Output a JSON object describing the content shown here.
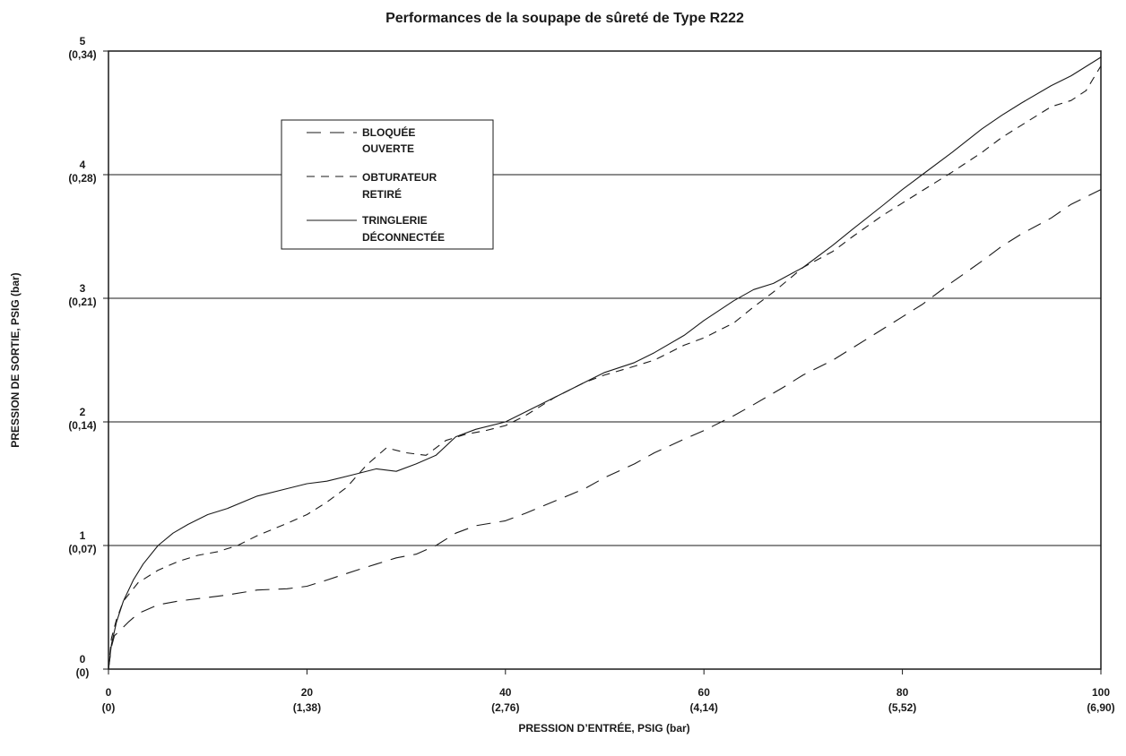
{
  "chart_data": {
    "type": "line",
    "title": "Performances de la soupape de sûreté de Type R222",
    "xlabel": "PRESSION D’ENTRÉE, PSIG (bar)",
    "ylabel": "PRESSION DE SORTIE, PSIG (bar)",
    "xlim": [
      0,
      100
    ],
    "ylim": [
      0,
      5
    ],
    "x_ticks": [
      {
        "value": 0,
        "label": "0",
        "sub": "(0)"
      },
      {
        "value": 20,
        "label": "20",
        "sub": "(1,38)"
      },
      {
        "value": 40,
        "label": "40",
        "sub": "(2,76)"
      },
      {
        "value": 60,
        "label": "60",
        "sub": "(4,14)"
      },
      {
        "value": 80,
        "label": "80",
        "sub": "(5,52)"
      },
      {
        "value": 100,
        "label": "100",
        "sub": "(6,90)"
      }
    ],
    "y_ticks": [
      {
        "value": 0,
        "label": "0",
        "sub": "(0)"
      },
      {
        "value": 1,
        "label": "1",
        "sub": "(0,07)"
      },
      {
        "value": 2,
        "label": "2",
        "sub": "(0,14)"
      },
      {
        "value": 3,
        "label": "3",
        "sub": "(0,21)"
      },
      {
        "value": 4,
        "label": "4",
        "sub": "(0,28)"
      },
      {
        "value": 5,
        "label": "5",
        "sub": "(0,34)"
      }
    ],
    "grid": "horizontal",
    "legend_position": "top-left",
    "series": [
      {
        "name": "BLOQUÉE OUVERTE",
        "legend_lines": [
          "BLOQUÉE",
          "OUVERTE"
        ],
        "dash": "long-dash",
        "x": [
          0,
          0.3,
          0.6,
          1,
          2,
          3,
          5,
          7,
          10,
          12,
          15,
          18,
          20,
          22,
          25,
          27,
          29,
          31,
          33,
          35,
          37,
          40,
          42,
          45,
          48,
          50,
          53,
          55,
          58,
          60,
          63,
          65,
          68,
          70,
          73,
          75,
          78,
          80,
          82,
          85,
          88,
          90,
          92,
          95,
          97,
          100
        ],
        "y": [
          0,
          0.18,
          0.27,
          0.3,
          0.38,
          0.45,
          0.52,
          0.55,
          0.58,
          0.6,
          0.64,
          0.65,
          0.67,
          0.72,
          0.8,
          0.85,
          0.9,
          0.93,
          1.0,
          1.1,
          1.16,
          1.2,
          1.26,
          1.36,
          1.46,
          1.55,
          1.66,
          1.75,
          1.86,
          1.93,
          2.05,
          2.14,
          2.28,
          2.38,
          2.5,
          2.6,
          2.75,
          2.85,
          2.95,
          3.13,
          3.3,
          3.42,
          3.52,
          3.65,
          3.76,
          3.88
        ]
      },
      {
        "name": "OBTURATEUR RETIRÉ",
        "legend_lines": [
          "OBTURATEUR",
          "RETIRÉ"
        ],
        "dash": "short-dash",
        "x": [
          0,
          0.3,
          0.8,
          1.5,
          3,
          5,
          7,
          9,
          11,
          13,
          15,
          18,
          20,
          22,
          24,
          26,
          28,
          30,
          32,
          34,
          36,
          38,
          40,
          42,
          45,
          48,
          50,
          53,
          55,
          58,
          60,
          63,
          65,
          67,
          70,
          73,
          75,
          78,
          80,
          82,
          85,
          88,
          90,
          92,
          95,
          97,
          98.5,
          100
        ],
        "y": [
          0,
          0.25,
          0.4,
          0.55,
          0.7,
          0.8,
          0.87,
          0.92,
          0.95,
          1.0,
          1.08,
          1.18,
          1.25,
          1.35,
          1.47,
          1.65,
          1.79,
          1.75,
          1.73,
          1.85,
          1.9,
          1.93,
          1.97,
          2.05,
          2.2,
          2.32,
          2.38,
          2.45,
          2.5,
          2.62,
          2.68,
          2.8,
          2.93,
          3.05,
          3.25,
          3.38,
          3.5,
          3.67,
          3.77,
          3.87,
          4.02,
          4.18,
          4.3,
          4.4,
          4.55,
          4.6,
          4.68,
          4.88
        ]
      },
      {
        "name": "TRINGLERIE DÉCONNECTÉE",
        "legend_lines": [
          "TRINGLERIE",
          "DÉCONNECTÉE"
        ],
        "dash": "solid",
        "x": [
          0,
          0.3,
          0.8,
          1.5,
          2.5,
          3.5,
          5,
          6.5,
          8,
          10,
          12,
          15,
          18,
          20,
          22,
          25,
          27,
          29,
          31,
          33,
          35,
          37,
          40,
          42,
          45,
          48,
          50,
          53,
          55,
          58,
          60,
          63,
          65,
          67,
          70,
          73,
          75,
          78,
          80,
          82,
          85,
          88,
          90,
          92,
          95,
          97,
          100
        ],
        "y": [
          0,
          0.2,
          0.38,
          0.55,
          0.72,
          0.85,
          1.0,
          1.1,
          1.17,
          1.25,
          1.3,
          1.4,
          1.46,
          1.5,
          1.52,
          1.58,
          1.62,
          1.6,
          1.66,
          1.73,
          1.88,
          1.94,
          2.0,
          2.08,
          2.2,
          2.32,
          2.4,
          2.48,
          2.56,
          2.7,
          2.82,
          2.98,
          3.07,
          3.12,
          3.25,
          3.43,
          3.56,
          3.75,
          3.88,
          4.0,
          4.18,
          4.37,
          4.48,
          4.58,
          4.72,
          4.8,
          4.95
        ]
      }
    ]
  }
}
